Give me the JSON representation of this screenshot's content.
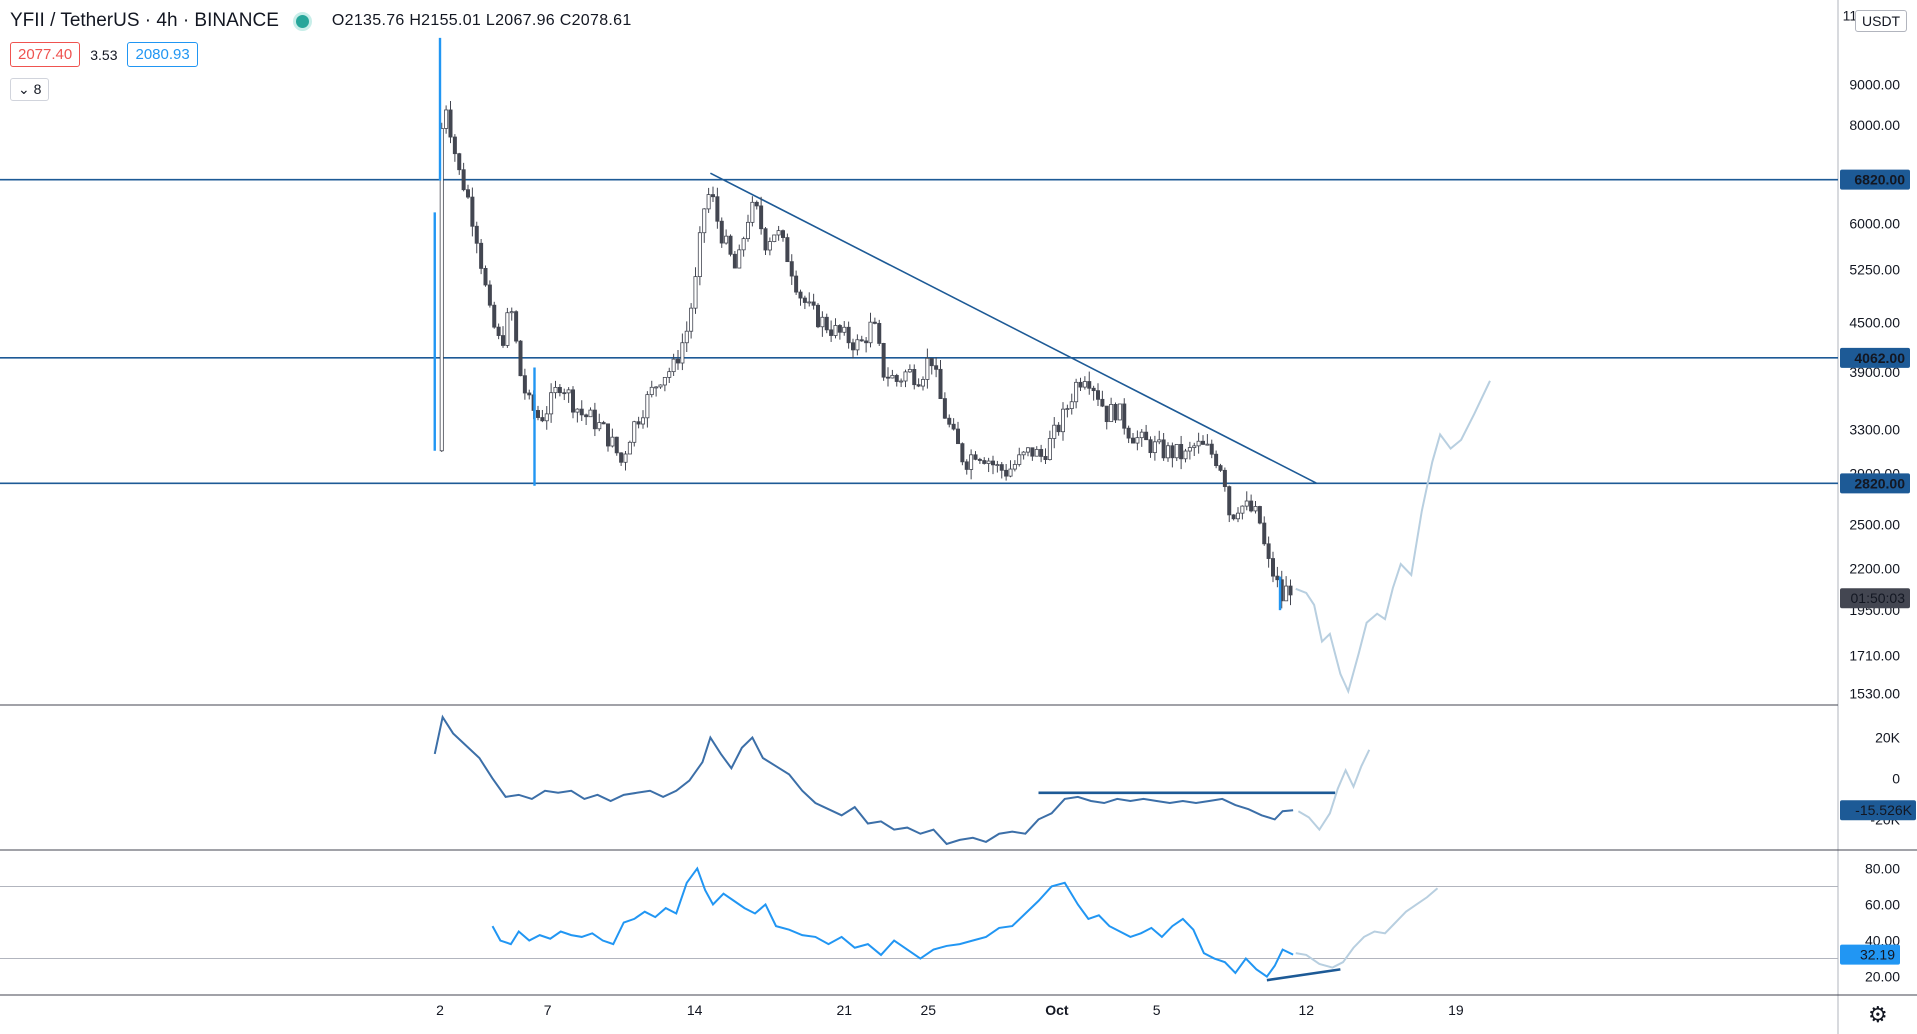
{
  "header": {
    "symbol": "YFII / TetherUS · 4h · BINANCE",
    "ohlc": "O2135.76 H2155.01 L2067.96 C2078.61",
    "bid": "2077.40",
    "spread": "3.53",
    "ask": "2080.93",
    "indicators_collapsed": "8",
    "currency": "USDT",
    "status_color": "#26a69a"
  },
  "colors": {
    "up": "#ffffff",
    "down": "#434651",
    "wick": "#434651",
    "spike": "#2196f3",
    "level_line": "#1d5a96",
    "trend_line": "#1d5a96",
    "projection": "#b8cfe0",
    "obv_line": "#3c6fa8",
    "rsi_line": "#2196f3",
    "rsi_band": "#b2b5be"
  },
  "chart_data": [
    {
      "type": "candlestick",
      "panel": "price",
      "scale": "log",
      "ylim": [
        1480,
        11500
      ],
      "y_ticks": [
        "11000.00",
        "9000.00",
        "8000.00",
        "6000.00",
        "5250.00",
        "4500.00",
        "3900.00",
        "3300.00",
        "2900.00",
        "2500.00",
        "2200.00",
        "1950.00",
        "1710.00",
        "1530.00"
      ],
      "x_ticks": [
        "2",
        "7",
        "14",
        "21",
        "25",
        "Oct",
        "5",
        "12",
        "19"
      ],
      "horizontal_levels": [
        {
          "value": 6820,
          "label": "6820.00"
        },
        {
          "value": 4062,
          "label": "4062.00"
        },
        {
          "value": 2820,
          "label": "2820.00"
        }
      ],
      "countdown_label": "01:50:03",
      "last_price": 2078.61,
      "close_path": [
        [
          1.9,
          3100
        ],
        [
          2.0,
          7600
        ],
        [
          2.2,
          8600
        ],
        [
          2.7,
          7000
        ],
        [
          3.0,
          6600
        ],
        [
          3.4,
          5800
        ],
        [
          3.9,
          4600
        ],
        [
          4.3,
          4200
        ],
        [
          4.7,
          4700
        ],
        [
          5.1,
          3800
        ],
        [
          5.4,
          3550
        ],
        [
          5.8,
          3400
        ],
        [
          6.2,
          3550
        ],
        [
          6.6,
          3800
        ],
        [
          7.0,
          3600
        ],
        [
          7.4,
          3450
        ],
        [
          7.8,
          3400
        ],
        [
          8.2,
          3300
        ],
        [
          8.6,
          3150
        ],
        [
          8.9,
          3000
        ],
        [
          9.3,
          3300
        ],
        [
          9.8,
          3550
        ],
        [
          10.4,
          3850
        ],
        [
          10.9,
          3950
        ],
        [
          11.4,
          4400
        ],
        [
          11.8,
          5200
        ],
        [
          12.0,
          6200
        ],
        [
          12.3,
          6600
        ],
        [
          12.6,
          6000
        ],
        [
          13.0,
          5500
        ],
        [
          13.3,
          5200
        ],
        [
          13.7,
          6100
        ],
        [
          14.0,
          6300
        ],
        [
          14.4,
          5700
        ],
        [
          14.8,
          5900
        ],
        [
          15.3,
          5400
        ],
        [
          15.7,
          4900
        ],
        [
          16.1,
          4650
        ],
        [
          16.6,
          4500
        ],
        [
          17.0,
          4400
        ],
        [
          17.5,
          4300
        ],
        [
          18.0,
          4200
        ],
        [
          18.5,
          4500
        ],
        [
          18.9,
          3900
        ],
        [
          19.4,
          3800
        ],
        [
          19.8,
          3900
        ],
        [
          20.3,
          3850
        ],
        [
          20.7,
          4100
        ],
        [
          21.1,
          3550
        ],
        [
          21.5,
          3250
        ],
        [
          22.0,
          3000
        ],
        [
          22.4,
          3100
        ],
        [
          22.8,
          3050
        ],
        [
          23.2,
          2950
        ],
        [
          23.6,
          2920
        ],
        [
          24.0,
          3000
        ],
        [
          24.5,
          3100
        ],
        [
          24.9,
          3050
        ],
        [
          25.3,
          3200
        ],
        [
          25.8,
          3450
        ],
        [
          26.2,
          3750
        ],
        [
          26.6,
          3900
        ],
        [
          27.0,
          3700
        ],
        [
          27.4,
          3450
        ],
        [
          27.8,
          3500
        ],
        [
          28.2,
          3300
        ],
        [
          28.6,
          3200
        ],
        [
          29.1,
          3150
        ],
        [
          29.5,
          3100
        ],
        [
          30.0,
          3080
        ],
        [
          30.4,
          3050
        ],
        [
          30.8,
          3150
        ],
        [
          31.3,
          3100
        ],
        [
          31.7,
          3000
        ],
        [
          31.9,
          2850
        ],
        [
          32.1,
          2550
        ],
        [
          32.4,
          2650
        ],
        [
          32.8,
          2620
        ],
        [
          33.2,
          2550
        ],
        [
          33.5,
          2250
        ],
        [
          33.8,
          2150
        ],
        [
          34.1,
          2000
        ],
        [
          34.3,
          2100
        ],
        [
          34.5,
          2078
        ]
      ],
      "projection_path": [
        [
          34.6,
          2075
        ],
        [
          35.0,
          2050
        ],
        [
          35.3,
          1980
        ],
        [
          35.6,
          1780
        ],
        [
          35.9,
          1820
        ],
        [
          36.3,
          1620
        ],
        [
          36.6,
          1540
        ],
        [
          37.0,
          1720
        ],
        [
          37.3,
          1880
        ],
        [
          37.7,
          1930
        ],
        [
          38.0,
          1900
        ],
        [
          38.3,
          2080
        ],
        [
          38.6,
          2230
        ],
        [
          39.0,
          2160
        ],
        [
          39.4,
          2600
        ],
        [
          39.8,
          3000
        ],
        [
          40.1,
          3250
        ],
        [
          40.5,
          3120
        ],
        [
          40.9,
          3200
        ],
        [
          41.4,
          3450
        ],
        [
          42.0,
          3800
        ]
      ],
      "trendline": [
        [
          12.3,
          6950
        ],
        [
          35.4,
          2820
        ]
      ],
      "spike_candles": [
        {
          "x": 1.8,
          "high": 6200,
          "low": 3100
        },
        {
          "x": 2.0,
          "high": 10300,
          "low": 6800
        },
        {
          "x": 5.6,
          "high": 3950,
          "low": 2800
        },
        {
          "x": 34.0,
          "high": 2150,
          "low": 1950
        }
      ]
    },
    {
      "type": "line",
      "panel": "obv",
      "ylim": [
        -33000,
        32000
      ],
      "y_ticks": [
        "20K",
        "0",
        "-20K"
      ],
      "last_label": "-15.526K",
      "x": [
        1.8,
        2.1,
        2.5,
        3.0,
        3.5,
        4.0,
        4.5,
        5.0,
        5.5,
        6.0,
        6.5,
        7.0,
        7.5,
        8.0,
        8.5,
        9.0,
        9.5,
        10.0,
        10.5,
        11.0,
        11.5,
        12.0,
        12.3,
        12.7,
        13.1,
        13.5,
        13.9,
        14.3,
        14.8,
        15.3,
        15.8,
        16.3,
        16.8,
        17.3,
        17.8,
        18.3,
        18.8,
        19.3,
        19.8,
        20.3,
        20.8,
        21.3,
        21.8,
        22.3,
        22.8,
        23.3,
        23.8,
        24.3,
        24.8,
        25.3,
        25.8,
        26.3,
        26.8,
        27.3,
        27.8,
        28.3,
        28.8,
        29.3,
        29.8,
        30.3,
        30.8,
        31.3,
        31.8,
        32.3,
        32.8,
        33.3,
        33.8,
        34.1,
        34.5
      ],
      "values": [
        12000,
        30000,
        22000,
        16000,
        10000,
        0,
        -9000,
        -8000,
        -10000,
        -6000,
        -7000,
        -6000,
        -10000,
        -8000,
        -11000,
        -8000,
        -7000,
        -6000,
        -9000,
        -6000,
        -1000,
        8000,
        20000,
        12000,
        5000,
        15000,
        20000,
        10000,
        6000,
        2000,
        -6000,
        -12000,
        -15000,
        -18000,
        -14000,
        -22000,
        -21000,
        -25000,
        -24000,
        -27000,
        -25000,
        -32000,
        -30000,
        -29000,
        -31000,
        -27000,
        -26000,
        -27000,
        -20000,
        -17000,
        -10000,
        -9000,
        -11000,
        -12000,
        -10000,
        -11000,
        -10000,
        -11000,
        -12000,
        -11000,
        -12000,
        -11000,
        -10000,
        -13000,
        -15000,
        -18000,
        -20000,
        -16000,
        -15526
      ],
      "projection_x": [
        34.7,
        35.1,
        35.5,
        35.9,
        36.2,
        36.5,
        36.8,
        37.1,
        37.4
      ],
      "projection": [
        -16000,
        -19000,
        -25000,
        -17000,
        -5000,
        4000,
        -4000,
        6000,
        14000
      ],
      "level_segment": {
        "x": [
          24.8,
          36.1
        ],
        "value": -7000
      }
    },
    {
      "type": "line",
      "panel": "rsi",
      "ylim": [
        12,
        88
      ],
      "y_ticks": [
        "80.00",
        "60.00",
        "40.00",
        "20.00"
      ],
      "bands": [
        70,
        30
      ],
      "last_label": "32.19",
      "x": [
        4.0,
        4.3,
        4.7,
        5.0,
        5.4,
        5.8,
        6.2,
        6.6,
        7.0,
        7.4,
        7.8,
        8.2,
        8.6,
        9.0,
        9.4,
        9.8,
        10.2,
        10.6,
        11.0,
        11.4,
        11.8,
        12.1,
        12.4,
        12.8,
        13.2,
        13.6,
        14.0,
        14.4,
        14.8,
        15.3,
        15.8,
        16.3,
        16.8,
        17.3,
        17.8,
        18.3,
        18.8,
        19.3,
        19.8,
        20.3,
        20.8,
        21.3,
        21.8,
        22.3,
        22.8,
        23.3,
        23.8,
        24.3,
        24.8,
        25.3,
        25.8,
        26.3,
        26.7,
        27.1,
        27.5,
        27.9,
        28.3,
        28.7,
        29.1,
        29.5,
        29.9,
        30.3,
        30.7,
        31.1,
        31.5,
        31.9,
        32.3,
        32.7,
        33.1,
        33.5,
        33.8,
        34.1,
        34.5
      ],
      "values": [
        48,
        40,
        38,
        45,
        40,
        43,
        41,
        45,
        43,
        42,
        44,
        40,
        38,
        50,
        52,
        56,
        53,
        58,
        55,
        72,
        80,
        68,
        60,
        66,
        62,
        58,
        55,
        60,
        48,
        46,
        43,
        42,
        38,
        42,
        36,
        38,
        32,
        40,
        35,
        30,
        35,
        37,
        38,
        40,
        42,
        47,
        48,
        55,
        62,
        70,
        72,
        60,
        52,
        54,
        48,
        45,
        42,
        44,
        47,
        42,
        48,
        52,
        46,
        33,
        30,
        28,
        22,
        30,
        24,
        20,
        26,
        35,
        32.19
      ],
      "projection_x": [
        34.6,
        35.0,
        35.5,
        36.0,
        36.4,
        36.8,
        37.2,
        37.6,
        38.0,
        38.4,
        38.8,
        39.2,
        39.6,
        40.0
      ],
      "projection": [
        33,
        32,
        27,
        25,
        28,
        36,
        42,
        45,
        44,
        50,
        56,
        60,
        64,
        69
      ],
      "divergence_line": [
        [
          33.5,
          18
        ],
        [
          36.3,
          24
        ]
      ]
    }
  ]
}
